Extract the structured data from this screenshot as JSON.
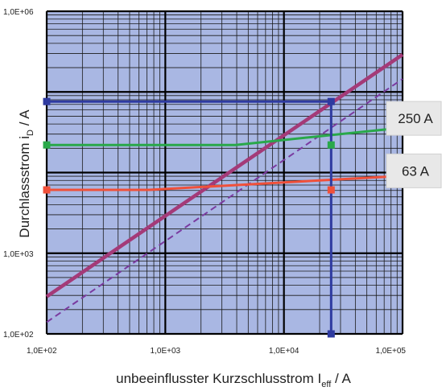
{
  "chart_data": {
    "type": "line",
    "x_scale": "log",
    "y_scale": "log",
    "xlim": [
      100,
      100000
    ],
    "ylim": [
      100,
      1000000
    ],
    "x_ticks": [
      {
        "value": 100,
        "label": "1,0E+02"
      },
      {
        "value": 1000,
        "label": "1,0E+03"
      },
      {
        "value": 10000,
        "label": "1,0E+04"
      },
      {
        "value": 100000,
        "label": "1,0E+05"
      }
    ],
    "y_ticks": [
      {
        "value": 100,
        "label": "1,0E+02"
      },
      {
        "value": 1000,
        "label": "1,0E+03"
      },
      {
        "value": 1000000,
        "label": "1,0E+06"
      }
    ],
    "xlabel": {
      "main": "unbeeinflusster Kurzschlusstrom I",
      "sub": "eff",
      "tail": " / A"
    },
    "ylabel": {
      "main": "Durchlassstrom i",
      "sub": "D",
      "tail": " / A"
    },
    "grid": true,
    "plot_background": "#a9b7e3",
    "series": [
      {
        "name": "",
        "color": "#a43a78",
        "style": "solid",
        "width": 4.5,
        "points": [
          [
            100,
            290
          ],
          [
            100000,
            290000
          ]
        ]
      },
      {
        "name": "",
        "color": "#7a3ba0",
        "style": "dashed",
        "width": 2,
        "points": [
          [
            100,
            140
          ],
          [
            100000,
            145000
          ]
        ]
      },
      {
        "name": "",
        "color": "#29a84a",
        "style": "solid",
        "width": 3,
        "points": [
          [
            100,
            22000
          ],
          [
            3900,
            22000
          ],
          [
            100000,
            36000
          ]
        ]
      },
      {
        "name": "",
        "color": "#f0503a",
        "style": "solid",
        "width": 3,
        "points": [
          [
            100,
            6100
          ],
          [
            730,
            6100
          ],
          [
            100000,
            9100
          ]
        ]
      },
      {
        "name": "",
        "color": "#2e3aa0",
        "style": "solid",
        "width": 3,
        "points": [
          [
            100,
            76000
          ],
          [
            25000,
            76000
          ],
          [
            25000,
            100
          ]
        ]
      }
    ],
    "markers": [
      {
        "x": 100,
        "y": 76000,
        "color": "#2e3aa0"
      },
      {
        "x": 25000,
        "y": 76000,
        "color": "#2e3aa0"
      },
      {
        "x": 25000,
        "y": 100,
        "color": "#2e3aa0"
      },
      {
        "x": 100,
        "y": 22000,
        "color": "#29a84a"
      },
      {
        "x": 25000,
        "y": 22000,
        "color": "#29a84a"
      },
      {
        "x": 100,
        "y": 6100,
        "color": "#f0503a"
      },
      {
        "x": 25000,
        "y": 6100,
        "color": "#f0503a"
      }
    ],
    "annotations": [
      {
        "text": "250 A",
        "x": 100000,
        "y": 47000
      },
      {
        "text": "63 A",
        "x": 100000,
        "y": 10500
      }
    ]
  }
}
